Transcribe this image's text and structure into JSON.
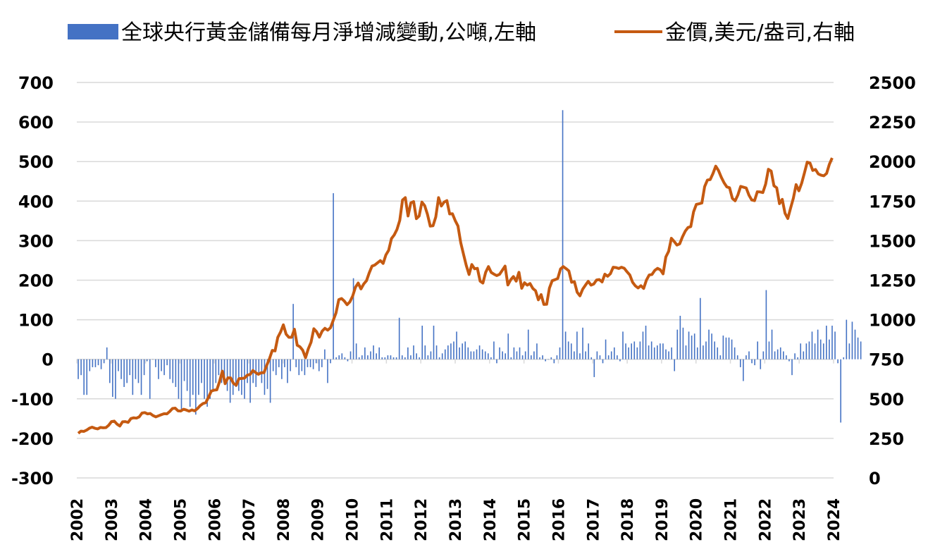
{
  "colors": {
    "bars": "#4472c4",
    "line": "#c55a11",
    "grid": "#d9d9d9",
    "text": "#000000"
  },
  "legend": [
    {
      "type": "bar",
      "label": "全球央行黃金儲備每月淨增減變動,公噸,左軸"
    },
    {
      "type": "line",
      "label": "金價,美元/盎司,右軸"
    }
  ],
  "chart_data": {
    "type": "bar+line",
    "title": "",
    "x_start_year": 2002,
    "x_tick_labels": [
      "2002",
      "2003",
      "2004",
      "2005",
      "2006",
      "2007",
      "2008",
      "2009",
      "2010",
      "2011",
      "2012",
      "2013",
      "2014",
      "2015",
      "2016",
      "2017",
      "2018",
      "2019",
      "2020",
      "2021",
      "2022",
      "2023",
      "2024"
    ],
    "y_left": {
      "min": -300,
      "max": 700,
      "step": 100,
      "tick_labels": [
        "700",
        "600",
        "500",
        "400",
        "300",
        "200",
        "100",
        "0",
        "-100",
        "-200",
        "-300"
      ]
    },
    "y_right": {
      "min": 0,
      "max": 2500,
      "step": 250,
      "tick_labels": [
        "2500",
        "2250",
        "2000",
        "1750",
        "1500",
        "1250",
        "1000",
        "750",
        "500",
        "250",
        "0"
      ]
    },
    "grid": true,
    "legend_position": "top",
    "series": [
      {
        "name": "全球央行黃金儲備每月淨增減變動,公噸,左軸",
        "type": "bar",
        "axis": "left",
        "values": [
          -50,
          -40,
          -90,
          -90,
          -30,
          -20,
          -20,
          -15,
          -25,
          -10,
          30,
          -60,
          -95,
          -100,
          -30,
          -50,
          -70,
          -60,
          -40,
          -90,
          -50,
          -60,
          -90,
          -40,
          -5,
          -100,
          0,
          -20,
          -50,
          -30,
          -40,
          -15,
          -50,
          -60,
          -70,
          -100,
          -130,
          -55,
          -80,
          -120,
          -90,
          -140,
          -90,
          -60,
          -100,
          -120,
          -100,
          -80,
          -60,
          -40,
          -60,
          -50,
          -80,
          -110,
          -90,
          -70,
          -80,
          -90,
          -100,
          -60,
          -110,
          -60,
          -70,
          -40,
          -60,
          -90,
          -75,
          -110,
          -30,
          -40,
          -20,
          -50,
          -20,
          -60,
          -30,
          140,
          -20,
          -40,
          -30,
          -40,
          -20,
          -20,
          -25,
          -10,
          -30,
          -20,
          25,
          -60,
          -10,
          420,
          5,
          10,
          15,
          5,
          -5,
          20,
          205,
          40,
          5,
          10,
          30,
          10,
          20,
          35,
          15,
          30,
          5,
          5,
          10,
          10,
          5,
          5,
          105,
          10,
          5,
          30,
          10,
          35,
          15,
          5,
          85,
          35,
          10,
          20,
          85,
          35,
          5,
          15,
          25,
          35,
          40,
          45,
          70,
          30,
          40,
          45,
          30,
          20,
          20,
          25,
          35,
          25,
          20,
          15,
          5,
          45,
          -10,
          30,
          20,
          15,
          65,
          5,
          30,
          20,
          30,
          10,
          20,
          75,
          10,
          20,
          40,
          5,
          10,
          -5,
          0,
          5,
          -10,
          10,
          30,
          630,
          70,
          45,
          40,
          20,
          70,
          15,
          80,
          20,
          40,
          5,
          -45,
          20,
          10,
          -10,
          50,
          10,
          20,
          30,
          10,
          -5,
          70,
          40,
          30,
          40,
          45,
          30,
          45,
          70,
          85,
          35,
          45,
          30,
          35,
          40,
          40,
          25,
          20,
          30,
          -30,
          75,
          110,
          80,
          35,
          70,
          60,
          65,
          30,
          155,
          35,
          45,
          75,
          65,
          45,
          30,
          10,
          60,
          55,
          55,
          50,
          30,
          10,
          -20,
          -55,
          10,
          20,
          -10,
          -15,
          45,
          -25,
          20,
          175,
          45,
          75,
          20,
          25,
          30,
          20,
          10,
          -5,
          -40,
          15,
          5,
          40,
          20,
          40,
          45,
          70,
          40,
          75,
          50,
          40,
          85,
          50,
          85,
          70,
          -10,
          -160,
          5,
          100,
          40,
          95,
          75,
          55,
          45
        ],
        "note": "monthly values, first bar = Jan 2002"
      },
      {
        "name": "金價,美元/盎司,右軸",
        "type": "line",
        "axis": "right",
        "values": [
          282,
          296,
          294,
          302,
          314,
          321,
          314,
          310,
          319,
          317,
          318,
          333,
          356,
          359,
          340,
          328,
          355,
          356,
          351,
          375,
          380,
          378,
          386,
          410,
          413,
          405,
          407,
          394,
          386,
          393,
          400,
          406,
          405,
          420,
          439,
          441,
          424,
          423,
          434,
          429,
          422,
          430,
          424,
          438,
          457,
          470,
          476,
          510,
          549,
          555,
          557,
          610,
          675,
          596,
          633,
          632,
          598,
          586,
          628,
          629,
          631,
          650,
          654,
          679,
          666,
          655,
          665,
          665,
          712,
          754,
          806,
          803,
          889,
          922,
          968,
          909,
          889,
          889,
          940,
          839,
          829,
          807,
          760,
          816,
          858,
          943,
          924,
          890,
          928,
          946,
          934,
          949,
          996,
          1043,
          1127,
          1134,
          1118,
          1095,
          1113,
          1149,
          1205,
          1232,
          1195,
          1226,
          1247,
          1297,
          1339,
          1346,
          1360,
          1374,
          1356,
          1410,
          1439,
          1513,
          1536,
          1571,
          1628,
          1757,
          1772,
          1656,
          1739,
          1747,
          1639,
          1656,
          1744,
          1721,
          1666,
          1592,
          1594,
          1650,
          1772,
          1719,
          1744,
          1753,
          1669,
          1670,
          1627,
          1593,
          1487,
          1414,
          1343,
          1286,
          1349,
          1322,
          1325,
          1244,
          1232,
          1300,
          1336,
          1299,
          1288,
          1279,
          1287,
          1313,
          1339,
          1220,
          1252,
          1273,
          1244,
          1300,
          1199,
          1234,
          1219,
          1229,
          1198,
          1183,
          1126,
          1159,
          1097,
          1098,
          1200,
          1247,
          1253,
          1261,
          1321,
          1336,
          1323,
          1309,
          1237,
          1241,
          1174,
          1151,
          1193,
          1219,
          1243,
          1219,
          1226,
          1251,
          1254,
          1239,
          1288,
          1275,
          1291,
          1332,
          1330,
          1324,
          1332,
          1325,
          1303,
          1283,
          1237,
          1214,
          1201,
          1215,
          1198,
          1251,
          1283,
          1286,
          1312,
          1325,
          1316,
          1290,
          1397,
          1432,
          1515,
          1495,
          1472,
          1480,
          1524,
          1560,
          1583,
          1589,
          1682,
          1729,
          1733,
          1738,
          1842,
          1883,
          1886,
          1924,
          1971,
          1943,
          1901,
          1866,
          1840,
          1834,
          1767,
          1752,
          1789,
          1843,
          1838,
          1833,
          1787,
          1757,
          1753,
          1809,
          1808,
          1804,
          1857,
          1951,
          1940,
          1847,
          1834,
          1734,
          1761,
          1673,
          1640,
          1705,
          1768,
          1854,
          1815,
          1863,
          1928,
          1996,
          1991,
          1944,
          1950,
          1922,
          1914,
          1910,
          1925,
          1983,
          2023
        ]
      }
    ]
  }
}
